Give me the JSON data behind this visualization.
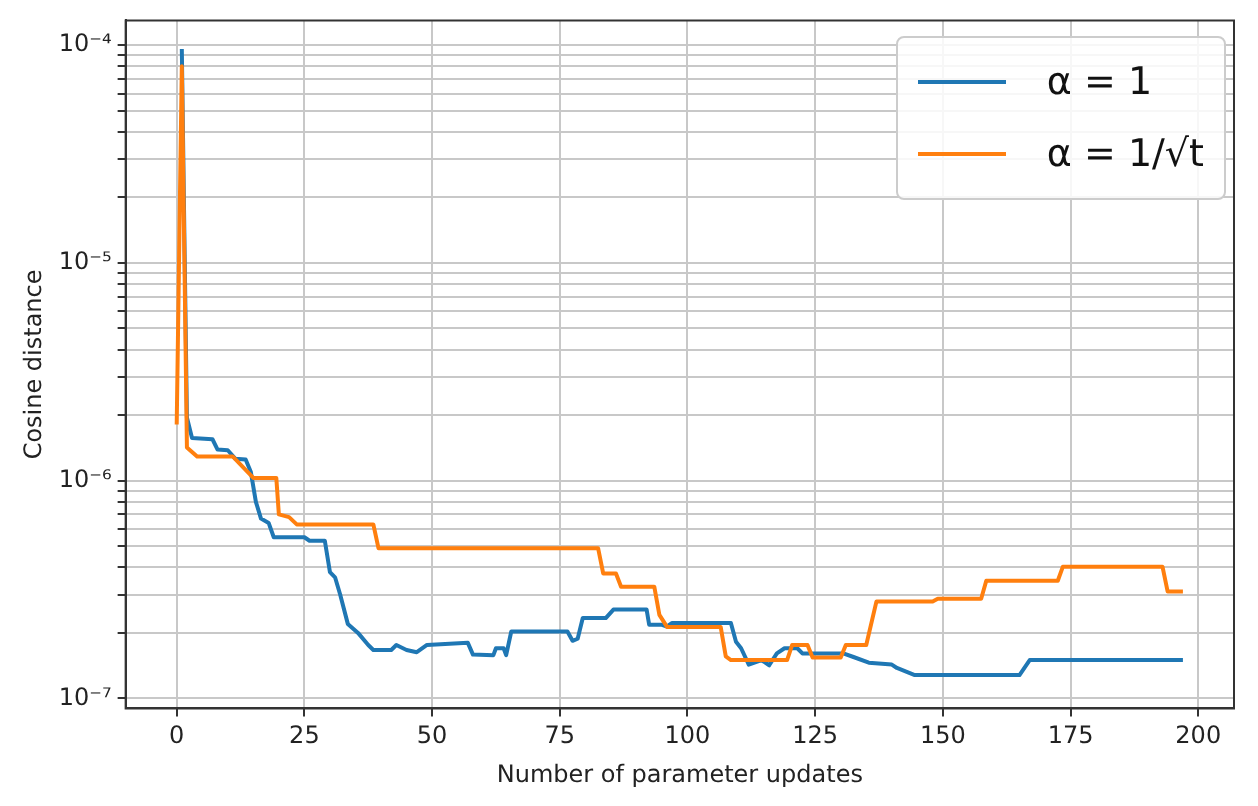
{
  "chart_data": {
    "type": "line",
    "xlabel": "Number of parameter updates",
    "ylabel": "Cosine distance",
    "log": "y",
    "grid": true,
    "legend": "top right",
    "marker": "none",
    "line_style": "solid",
    "xlim": [
      -10,
      207
    ],
    "xticks": [
      0,
      25,
      50,
      75,
      100,
      125,
      150,
      175,
      200
    ],
    "ylim": [
      9e-08,
      0.00013
    ],
    "yticks": [
      {
        "value": 1e-07,
        "label": "10⁻⁷"
      },
      {
        "value": 2e-07,
        "label": null
      },
      {
        "value": 3e-07,
        "label": null
      },
      {
        "value": 4e-07,
        "label": null
      },
      {
        "value": 5e-07,
        "label": null
      },
      {
        "value": 6e-07,
        "label": null
      },
      {
        "value": 7e-07,
        "label": null
      },
      {
        "value": 8e-07,
        "label": null
      },
      {
        "value": 9e-07,
        "label": null
      },
      {
        "value": 1e-06,
        "label": "10⁻⁶"
      },
      {
        "value": 2e-06,
        "label": null
      },
      {
        "value": 3e-06,
        "label": null
      },
      {
        "value": 4e-06,
        "label": null
      },
      {
        "value": 5e-06,
        "label": null
      },
      {
        "value": 6e-06,
        "label": null
      },
      {
        "value": 7e-06,
        "label": null
      },
      {
        "value": 8e-06,
        "label": null
      },
      {
        "value": 9e-06,
        "label": null
      },
      {
        "value": 1e-05,
        "label": "10⁻⁵"
      },
      {
        "value": 2e-05,
        "label": null
      },
      {
        "value": 3e-05,
        "label": null
      },
      {
        "value": 4e-05,
        "label": null
      },
      {
        "value": 5e-05,
        "label": null
      },
      {
        "value": 6e-05,
        "label": null
      },
      {
        "value": 7e-05,
        "label": null
      },
      {
        "value": 8e-05,
        "label": null
      },
      {
        "value": 9e-05,
        "label": null
      },
      {
        "value": 0.0001,
        "label": "10⁻⁴"
      }
    ],
    "series": [
      {
        "name": "α = 1",
        "color": "#1f77b4",
        "x": [
          1,
          2,
          3,
          7,
          8,
          10,
          11.5,
          13.5,
          14.5,
          15.5,
          16.5,
          18,
          19,
          25,
          26,
          29,
          30,
          31,
          32,
          33.5,
          35.5,
          37.5,
          38.5,
          42,
          43,
          45,
          47,
          49,
          57,
          58,
          62,
          62.5,
          64,
          64.5,
          65.5,
          76.5,
          77.5,
          78.5,
          79.5,
          84,
          85.5,
          92,
          92.5,
          95,
          96,
          97,
          108.5,
          109.5,
          110.5,
          112,
          114.5,
          116,
          117.5,
          119,
          121.5,
          122.5,
          130.5,
          132.5,
          135.5,
          140,
          141,
          144.5,
          165,
          167,
          197
        ],
        "values": [
          9.6e-05,
          1.95e-06,
          1.57e-06,
          1.55e-06,
          1.39e-06,
          1.38e-06,
          1.26e-06,
          1.25e-06,
          1.1e-06,
          8e-07,
          6.7e-07,
          6.4e-07,
          5.5e-07,
          5.5e-07,
          5.3e-07,
          5.3e-07,
          3.8e-07,
          3.6e-07,
          3e-07,
          2.2e-07,
          2e-07,
          1.76e-07,
          1.67e-07,
          1.67e-07,
          1.76e-07,
          1.67e-07,
          1.63e-07,
          1.76e-07,
          1.8e-07,
          1.59e-07,
          1.58e-07,
          1.7e-07,
          1.7e-07,
          1.58e-07,
          2.03e-07,
          2.03e-07,
          1.84e-07,
          1.88e-07,
          2.34e-07,
          2.34e-07,
          2.56e-07,
          2.56e-07,
          2.18e-07,
          2.18e-07,
          2.14e-07,
          2.22e-07,
          2.22e-07,
          1.82e-07,
          1.7e-07,
          1.43e-07,
          1.5e-07,
          1.42e-07,
          1.61e-07,
          1.7e-07,
          1.7e-07,
          1.61e-07,
          1.61e-07,
          1.55e-07,
          1.46e-07,
          1.43e-07,
          1.38e-07,
          1.28e-07,
          1.28e-07,
          1.5e-07,
          1.5e-07
        ]
      },
      {
        "name": "α = 1/√t",
        "color": "#ff7f0e",
        "x": [
          0,
          1,
          2,
          4,
          11,
          15,
          19.5,
          20,
          22,
          23.5,
          38.5,
          39.5,
          82.5,
          83.5,
          86,
          87,
          93.5,
          94.5,
          96,
          106.5,
          107.5,
          108.5,
          119.5,
          120.5,
          123.5,
          124.5,
          130,
          131,
          135,
          137,
          148,
          149,
          157.5,
          158.5,
          172.5,
          173.5,
          193,
          194,
          197
        ],
        "values": [
          1.81e-06,
          8e-05,
          1.42e-06,
          1.29e-06,
          1.29e-06,
          1.03e-06,
          1.03e-06,
          7e-07,
          6.8e-07,
          6.3e-07,
          6.3e-07,
          4.9e-07,
          4.9e-07,
          3.75e-07,
          3.75e-07,
          3.26e-07,
          3.26e-07,
          2.42e-07,
          2.13e-07,
          2.13e-07,
          1.56e-07,
          1.5e-07,
          1.5e-07,
          1.76e-07,
          1.76e-07,
          1.54e-07,
          1.54e-07,
          1.76e-07,
          1.76e-07,
          2.79e-07,
          2.79e-07,
          2.87e-07,
          2.87e-07,
          3.47e-07,
          3.47e-07,
          4.03e-07,
          4.03e-07,
          3.1e-07,
          3.1e-07
        ]
      }
    ]
  }
}
